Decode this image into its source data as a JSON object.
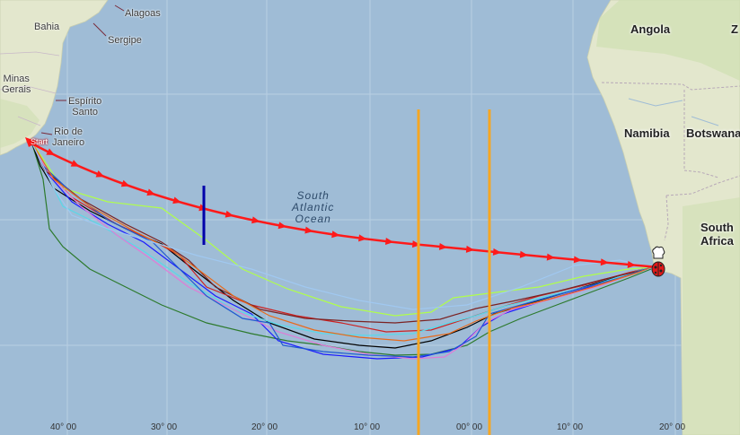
{
  "ocean_label": [
    "South",
    "Atlantic",
    "Ocean"
  ],
  "countries": {
    "angola": "Angola",
    "namibia": "Namibia",
    "botswana": "Botswana",
    "south_africa": [
      "South",
      "Africa"
    ],
    "zambia_partial": "Z"
  },
  "cities": {
    "alagoas": "Alagoas",
    "bahia": "Bahia",
    "sergipe": "Sergipe",
    "minas_gerais": [
      "Minas",
      "Gerais"
    ],
    "espirito_santo": [
      "Espírito",
      "Santo"
    ],
    "rio_de_janeiro": [
      "Rio de",
      "Janeiro"
    ]
  },
  "start_label": "Start",
  "longitude_labels": [
    "40° 00",
    "30° 00",
    "20° 00",
    "10° 00",
    "00° 00",
    "10° 00",
    "20° 00"
  ],
  "colors": {
    "ocean": "#9fbcd6",
    "land": "#e6e8cf",
    "rhumb_line": "#ff1a1a",
    "gate_lines": "#f5a623",
    "marker_line": "#0000aa"
  },
  "tracks": [
    {
      "color": "#2d7a2d"
    },
    {
      "color": "#000000"
    },
    {
      "color": "#1a1aff"
    },
    {
      "color": "#cc2222"
    },
    {
      "color": "#b0ff4a"
    },
    {
      "color": "#5ad8e8"
    },
    {
      "color": "#e07bd6"
    },
    {
      "color": "#7b2222"
    },
    {
      "color": "#1f5ad0"
    },
    {
      "color": "#e86a1a"
    },
    {
      "color": "#a0c8f0"
    }
  ],
  "icons": {
    "finish_marker": "ladybug-icon",
    "finish_flag": "chef-hat-icon"
  }
}
